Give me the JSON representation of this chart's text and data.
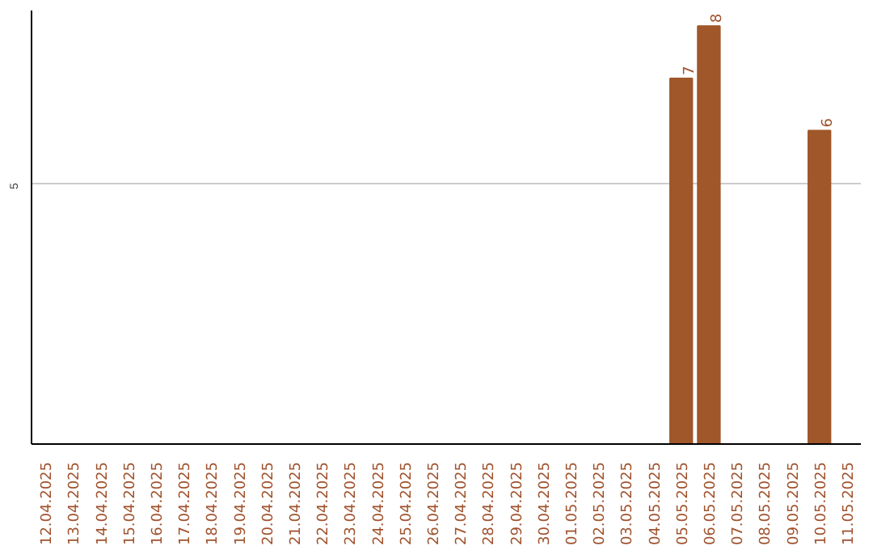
{
  "chart_data": {
    "type": "bar",
    "categories": [
      "12.04.2025",
      "13.04.2025",
      "14.04.2025",
      "15.04.2025",
      "16.04.2025",
      "17.04.2025",
      "18.04.2025",
      "19.04.2025",
      "20.04.2025",
      "21.04.2025",
      "22.04.2025",
      "23.04.2025",
      "24.04.2025",
      "25.04.2025",
      "26.04.2025",
      "27.04.2025",
      "28.04.2025",
      "29.04.2025",
      "30.04.2025",
      "01.05.2025",
      "02.05.2025",
      "03.05.2025",
      "04.05.2025",
      "05.05.2025",
      "06.05.2025",
      "07.05.2025",
      "08.05.2025",
      "09.05.2025",
      "10.05.2025",
      "11.05.2025"
    ],
    "values": [
      null,
      null,
      null,
      null,
      null,
      null,
      null,
      null,
      null,
      null,
      null,
      null,
      null,
      null,
      null,
      null,
      null,
      null,
      null,
      null,
      null,
      null,
      null,
      7,
      8,
      null,
      null,
      null,
      6,
      null
    ],
    "color": "#a0572a",
    "ylim": [
      0,
      8.3
    ],
    "yticks": [
      5
    ],
    "grid": "y",
    "data_labels": true
  }
}
